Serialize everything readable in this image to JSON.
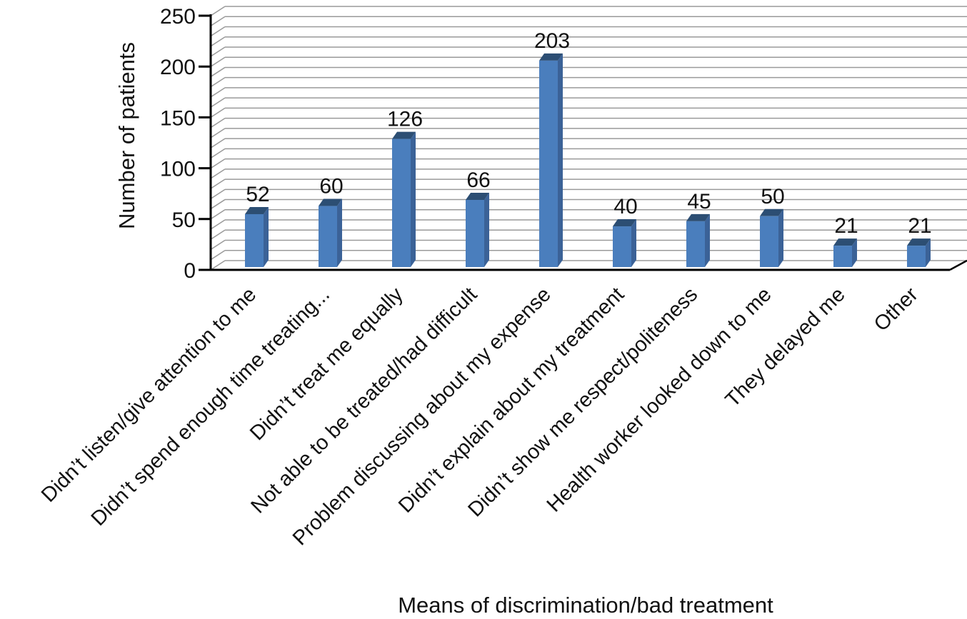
{
  "chart_data": {
    "type": "bar",
    "style": "3d-column",
    "title": "",
    "xlabel": "Means of discrimination/bad treatment",
    "ylabel": "Number of patients",
    "categories": [
      "Didn’t listen/give attention to me",
      "Didn’t spend enough time treating...",
      "Didn’t treat me equally",
      "Not able to be treated/had difficult",
      "Problem discussing about my expense",
      "Didn’t explain about my treatment",
      "Didn’t show me respect/politeness",
      "Health worker looked down to me",
      "They delayed me",
      "Other"
    ],
    "values": [
      52,
      60,
      126,
      66,
      203,
      40,
      45,
      50,
      21,
      21
    ],
    "data_labels_shown": true,
    "yticks": [
      0,
      50,
      100,
      150,
      200,
      250
    ],
    "ylim": [
      0,
      250
    ],
    "grid": "horizontal minor gridlines every 10, on 3D back wall",
    "legend": "none",
    "colors": {
      "bar_front": "#4A7EBD",
      "bar_side": "#3B6297",
      "bar_top": "#2C4E73",
      "gridline": "#9A9A9A",
      "axis": "#000000",
      "text": "#111111",
      "background": "#FFFFFF"
    }
  }
}
